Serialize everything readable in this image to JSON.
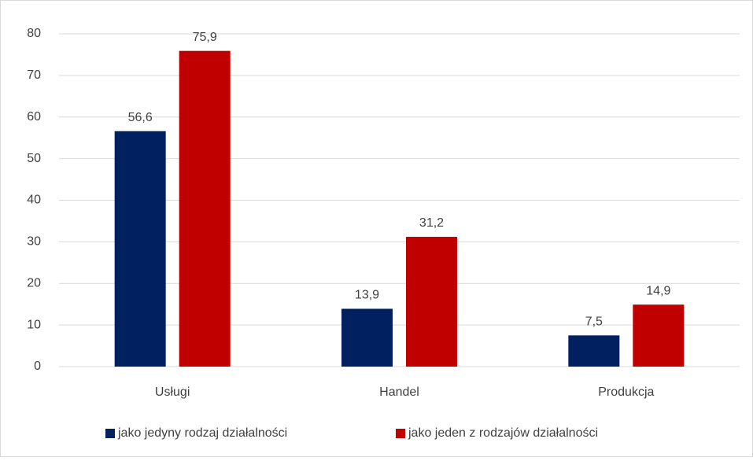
{
  "chart_data": {
    "type": "bar",
    "categories": [
      "Usługi",
      "Handel",
      "Produkcja"
    ],
    "series": [
      {
        "name": "jako jedyny rodzaj działalności",
        "color": "#002060",
        "values": [
          56.6,
          13.9,
          7.5
        ],
        "value_labels": [
          "56,6",
          "13,9",
          "7,5"
        ]
      },
      {
        "name": "jako jeden z rodzajów działalności",
        "color": "#c00000",
        "values": [
          75.9,
          31.2,
          14.9
        ],
        "value_labels": [
          "75,9",
          "31,2",
          "14,9"
        ]
      }
    ],
    "ylim": [
      0,
      80
    ],
    "yticks": [
      0,
      10,
      20,
      30,
      40,
      50,
      60,
      70,
      80
    ],
    "grid": true,
    "legend": "bottom"
  }
}
